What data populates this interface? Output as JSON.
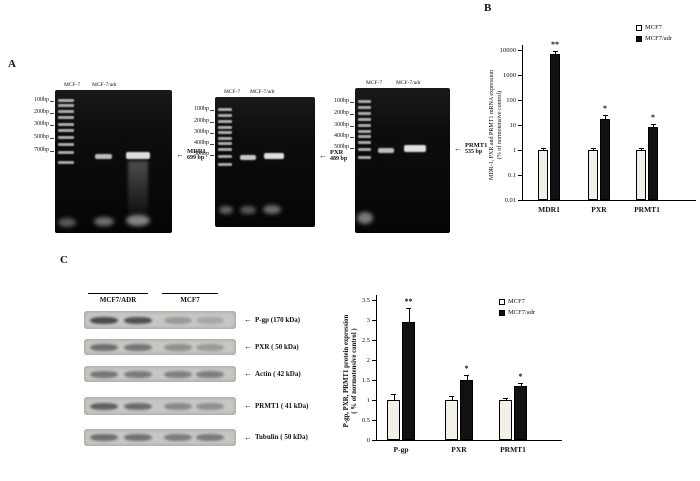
{
  "colors": {
    "bar_control": "#f3f0e7",
    "bar_treated": "#111111",
    "gel_bg": "#0d0d0d",
    "blot_bg": "#c9c7c3"
  },
  "panels": {
    "a": {
      "label": "A",
      "gels": [
        {
          "lane_labels": [
            "MCF-7",
            "MCF-7/adr"
          ],
          "ladder_labels": [
            "100bp",
            "200bp",
            "300bp",
            "500bp",
            "700bp"
          ],
          "annotation": {
            "arrow": "←",
            "name": "MDR1",
            "size": "699 bp"
          }
        },
        {
          "lane_labels": [
            "MCF-7",
            "MCF-7/adr"
          ],
          "ladder_labels": [
            "100bp",
            "200bp",
            "300bp",
            "400bp",
            "500bp"
          ],
          "annotation": {
            "arrow": "←",
            "name": "PXR",
            "size": "489 bp"
          }
        },
        {
          "lane_labels": [
            "MCF-7",
            "MCF-7/adr"
          ],
          "ladder_labels": [
            "100bp",
            "200bp",
            "300bp",
            "400bp",
            "500bp"
          ],
          "annotation": {
            "arrow": "←",
            "name": "PRMT1",
            "size": "535 bp"
          }
        }
      ]
    },
    "b": {
      "label": "B"
    },
    "c": {
      "label": "C",
      "blot": {
        "arrow": "←",
        "group_labels": [
          "MCF7/ADR",
          "MCF7"
        ],
        "rows": [
          {
            "name": "P-gp",
            "size": "(170 kDa)"
          },
          {
            "name": "PXR",
            "size": "( 50 kDa)"
          },
          {
            "name": "Actin",
            "size": "( 42 kDa)"
          },
          {
            "name": "PRMT1",
            "size": "( 41 kDa)"
          },
          {
            "name": "Tubulin",
            "size": "( 50 kDa)"
          }
        ]
      }
    }
  },
  "chart_data": [
    {
      "id": "mrna-expression",
      "type": "bar",
      "title": "",
      "categories": [
        "MDR1",
        "PXR",
        "PRMT1"
      ],
      "series": [
        {
          "name": "MCF7",
          "values": [
            1,
            1,
            1
          ],
          "errors": [
            0.2,
            0.2,
            0.15
          ]
        },
        {
          "name": "MCF7/adr",
          "values": [
            7000,
            18,
            8
          ],
          "errors": [
            2000,
            6,
            3
          ]
        }
      ],
      "significance": [
        "**",
        "*",
        "*"
      ],
      "ylabel_lines": [
        "MDR-1, PXR and PRMT1 mRNA expression",
        "(% of normotensive control)"
      ],
      "yscale": "log",
      "ylim": [
        0.01,
        10000
      ],
      "yticks": [
        "10000",
        "1000",
        "100",
        "10",
        "1",
        "0.1",
        "0.01"
      ],
      "xlabel": "",
      "legend": [
        "MCF7",
        "MCF7/adr"
      ],
      "legend_position": "top-right",
      "grid": false
    },
    {
      "id": "protein-expression",
      "type": "bar",
      "title": "",
      "categories": [
        "P-gp",
        "PXR",
        "PRMT1"
      ],
      "series": [
        {
          "name": "MCF7",
          "values": [
            1.0,
            1.0,
            1.0
          ],
          "errors": [
            0.15,
            0.1,
            0.05
          ]
        },
        {
          "name": "MCF7/adr",
          "values": [
            2.95,
            1.5,
            1.35
          ],
          "errors": [
            0.35,
            0.12,
            0.07
          ]
        }
      ],
      "significance": [
        "**",
        "*",
        "*"
      ],
      "ylabel_lines": [
        "P-gp, PXR, PRMT1 protein expression",
        "( % of normotensive control )"
      ],
      "yscale": "linear",
      "ylim": [
        0,
        3.5
      ],
      "yticks": [
        "3.5",
        "3",
        "2.5",
        "2",
        "1.5",
        "1",
        "0.5",
        "0"
      ],
      "xlabel": "",
      "legend": [
        "MCF7",
        "MCF7/adr"
      ],
      "legend_position": "top-right",
      "grid": false
    }
  ]
}
